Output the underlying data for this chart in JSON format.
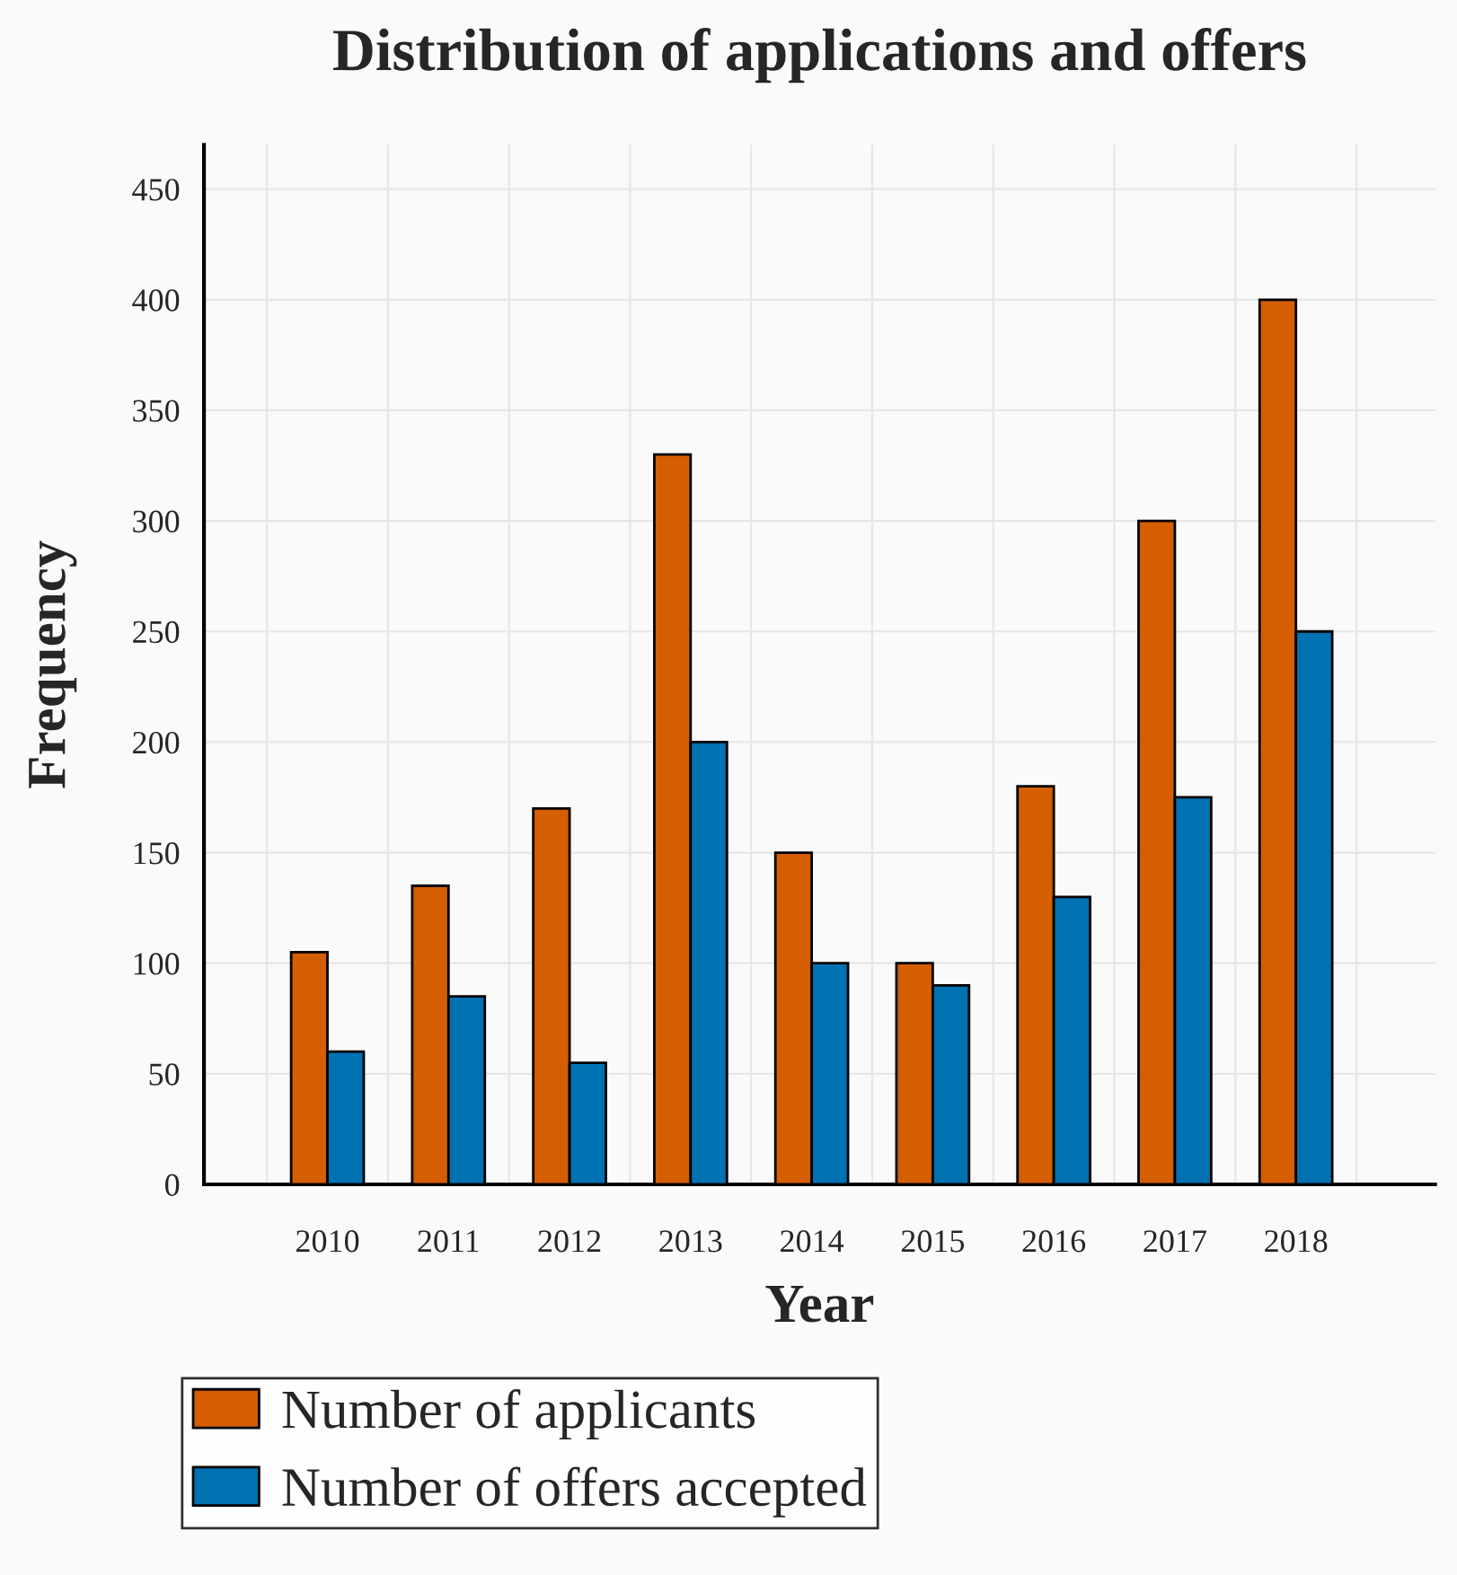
{
  "chart_data": {
    "type": "bar",
    "title": "Distribution of applications and offers",
    "xlabel": "Year",
    "ylabel": "Frequency",
    "categories": [
      "2010",
      "2011",
      "2012",
      "2013",
      "2014",
      "2015",
      "2016",
      "2017",
      "2018"
    ],
    "series": [
      {
        "name": "Number of applicants",
        "color": "#d55e00",
        "values": [
          105,
          135,
          170,
          330,
          150,
          100,
          180,
          300,
          400
        ]
      },
      {
        "name": "Number of offers accepted",
        "color": "#0072b2",
        "values": [
          60,
          85,
          55,
          200,
          100,
          90,
          130,
          175,
          250
        ]
      }
    ],
    "ylim": [
      0,
      470
    ],
    "yticks": [
      0,
      50,
      100,
      150,
      200,
      250,
      300,
      350,
      400,
      450
    ],
    "grid": true,
    "legend": "bottom left"
  }
}
